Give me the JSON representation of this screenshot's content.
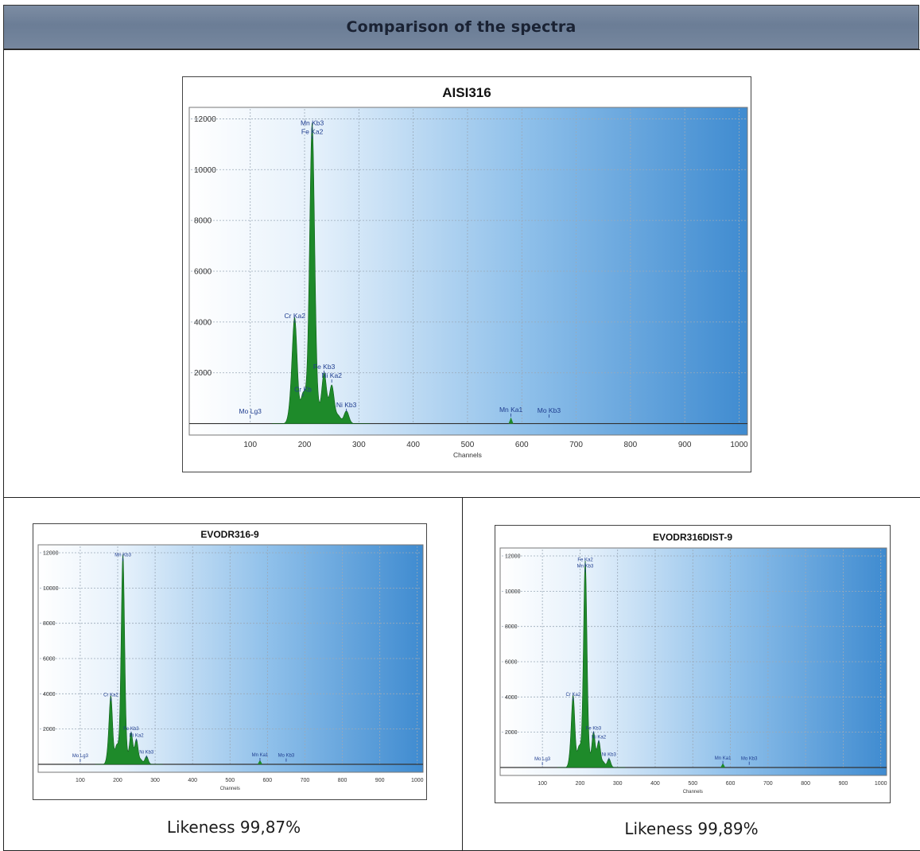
{
  "header": {
    "title": "Comparison of the spectra"
  },
  "colors": {
    "header_bg": "#7384a0",
    "plot_light": "#ffffff",
    "plot_dark": "#3f8bd0",
    "peak_fill": "#1e8a2a",
    "label_text": "#1f3d8f"
  },
  "chart_data": [
    {
      "id": "main",
      "type": "area",
      "title": "AISI316",
      "xlabel": "Channels",
      "ylabel": "",
      "xlim": [
        0,
        1000
      ],
      "ylim": [
        0,
        12000
      ],
      "xticks": [
        "100",
        "200",
        "300",
        "400",
        "500",
        "600",
        "700",
        "800",
        "900",
        "1000"
      ],
      "yticks": [
        "2000",
        "4000",
        "6000",
        "8000",
        "10000",
        "12000"
      ],
      "grid": true,
      "peaks": [
        {
          "x": 175,
          "y": 600
        },
        {
          "x": 182,
          "y": 4000
        },
        {
          "x": 197,
          "y": 1100
        },
        {
          "x": 206,
          "y": 800
        },
        {
          "x": 214,
          "y": 11600
        },
        {
          "x": 223,
          "y": 600
        },
        {
          "x": 236,
          "y": 2000
        },
        {
          "x": 250,
          "y": 1500
        },
        {
          "x": 262,
          "y": 300
        },
        {
          "x": 277,
          "y": 500
        },
        {
          "x": 580,
          "y": 250
        }
      ],
      "annotations": [
        {
          "text": "Mn Kb3",
          "x": 214,
          "y": 11750
        },
        {
          "text": "Fe Ka2",
          "x": 214,
          "y": 11400
        },
        {
          "text": "Cr Ka2",
          "x": 182,
          "y": 4150
        },
        {
          "text": "Cr Kb",
          "x": 197,
          "y": 1250
        },
        {
          "text": "Fe Kb3",
          "x": 236,
          "y": 2150
        },
        {
          "text": "Ni Ka2",
          "x": 250,
          "y": 1800
        },
        {
          "text": "Ni Kb3",
          "x": 277,
          "y": 650
        },
        {
          "text": "Mo Lg3",
          "x": 100,
          "y": 400
        },
        {
          "text": "Mn Ka1",
          "x": 580,
          "y": 460
        },
        {
          "text": "Mo Kb3",
          "x": 650,
          "y": 420
        }
      ]
    },
    {
      "id": "left",
      "type": "area",
      "title": "EVODR316-9",
      "xlabel": "Channels",
      "ylabel": "",
      "xlim": [
        0,
        1000
      ],
      "ylim": [
        0,
        12000
      ],
      "xticks": [
        "100",
        "200",
        "300",
        "400",
        "500",
        "600",
        "700",
        "800",
        "900",
        "1000"
      ],
      "yticks": [
        "2000",
        "4000",
        "6000",
        "8000",
        "10000",
        "12000"
      ],
      "grid": true,
      "peaks": [
        {
          "x": 175,
          "y": 600
        },
        {
          "x": 182,
          "y": 3700
        },
        {
          "x": 197,
          "y": 1000
        },
        {
          "x": 206,
          "y": 700
        },
        {
          "x": 214,
          "y": 11700
        },
        {
          "x": 223,
          "y": 500
        },
        {
          "x": 236,
          "y": 1800
        },
        {
          "x": 250,
          "y": 1400
        },
        {
          "x": 262,
          "y": 250
        },
        {
          "x": 277,
          "y": 450
        },
        {
          "x": 580,
          "y": 250
        }
      ],
      "annotations": [
        {
          "text": "Mn Kb3",
          "x": 214,
          "y": 11800
        },
        {
          "text": "Cr Ka2",
          "x": 182,
          "y": 3850
        },
        {
          "text": "Fe Kb3",
          "x": 236,
          "y": 1950
        },
        {
          "text": "Ni Ka2",
          "x": 250,
          "y": 1550
        },
        {
          "text": "Ni Kb3",
          "x": 277,
          "y": 600
        },
        {
          "text": "Mo Lg3",
          "x": 100,
          "y": 400
        },
        {
          "text": "Mn Ka1",
          "x": 580,
          "y": 450
        },
        {
          "text": "Mo Kb3",
          "x": 650,
          "y": 420
        }
      ]
    },
    {
      "id": "right",
      "type": "area",
      "title": "EVODR316DIST-9",
      "xlabel": "Channels",
      "ylabel": "",
      "xlim": [
        0,
        1000
      ],
      "ylim": [
        0,
        12000
      ],
      "xticks": [
        "100",
        "200",
        "300",
        "400",
        "500",
        "600",
        "700",
        "800",
        "900",
        "1000"
      ],
      "yticks": [
        "2000",
        "4000",
        "6000",
        "8000",
        "10000",
        "12000"
      ],
      "grid": true,
      "peaks": [
        {
          "x": 175,
          "y": 600
        },
        {
          "x": 182,
          "y": 3900
        },
        {
          "x": 197,
          "y": 1100
        },
        {
          "x": 206,
          "y": 800
        },
        {
          "x": 214,
          "y": 11500
        },
        {
          "x": 223,
          "y": 600
        },
        {
          "x": 236,
          "y": 2000
        },
        {
          "x": 250,
          "y": 1500
        },
        {
          "x": 262,
          "y": 300
        },
        {
          "x": 277,
          "y": 500
        },
        {
          "x": 580,
          "y": 250
        }
      ],
      "annotations": [
        {
          "text": "Fe Ka2",
          "x": 214,
          "y": 11700
        },
        {
          "text": "Mn Kb3",
          "x": 214,
          "y": 11350
        },
        {
          "text": "Cr Ka2",
          "x": 182,
          "y": 4050
        },
        {
          "text": "Fe Kb3",
          "x": 236,
          "y": 2150
        },
        {
          "text": "Ni Ka2",
          "x": 250,
          "y": 1650
        },
        {
          "text": "Ni Kb3",
          "x": 277,
          "y": 650
        },
        {
          "text": "Mo Lg3",
          "x": 100,
          "y": 400
        },
        {
          "text": "Mn Ka1",
          "x": 580,
          "y": 460
        },
        {
          "text": "Mo Kb3",
          "x": 650,
          "y": 420
        }
      ]
    }
  ],
  "results": {
    "left_likeness": "Likeness  99,87%",
    "right_likeness": "Likeness  99,89%"
  }
}
